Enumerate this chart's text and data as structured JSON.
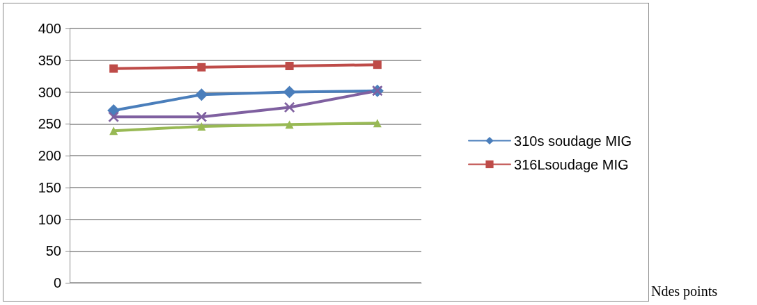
{
  "chart_data": {
    "type": "line",
    "annotations": [
      "Ndes points"
    ],
    "categories": [
      null,
      null,
      null,
      null
    ],
    "ylim": [
      0,
      400
    ],
    "yticks": [
      0,
      50,
      100,
      150,
      200,
      250,
      300,
      350,
      400
    ],
    "grid": "y",
    "legend": "right",
    "series": [
      {
        "name": "310s soudage MIG",
        "color": "#4a7ebb",
        "marker": "diamond",
        "values": [
          271,
          296,
          300,
          302
        ]
      },
      {
        "name": "316Lsoudage MIG",
        "color": "#be4b48",
        "marker": "square",
        "values": [
          337,
          339,
          341,
          343
        ]
      },
      {
        "color": "#7f60a0",
        "marker": "cross",
        "values": [
          261,
          261,
          276,
          302
        ]
      },
      {
        "color": "#98b954",
        "marker": "triangle",
        "values": [
          239,
          246,
          249,
          251
        ]
      }
    ]
  }
}
